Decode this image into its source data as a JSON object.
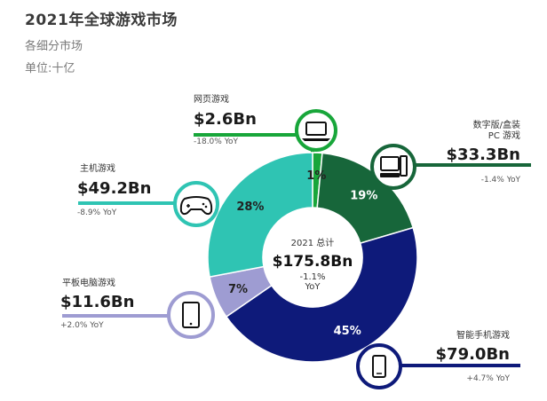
{
  "header": {
    "title": "2021年全球游戏市场",
    "subtitle": "各细分市场",
    "unit": "单位:十亿"
  },
  "chart_data": {
    "type": "pie",
    "title": "2021年全球游戏市场",
    "subtitle": "各细分市场",
    "unit": "单位:十亿",
    "center": {
      "label": "2021 总计",
      "value": "$175.8Bn",
      "yoy": "-1.1%",
      "yoy_unit": "YoY"
    },
    "segments": [
      {
        "name": "网页游戏",
        "value": 2.6,
        "value_label": "$2.6Bn",
        "percent": 1,
        "percent_label": "1%",
        "yoy": "-18.0% YoY",
        "color": "#18a63a",
        "text_color": "#222222",
        "icon": "laptop-icon"
      },
      {
        "name": "数字版/盒装 PC 游戏",
        "name_lines": [
          "数字版/盒装",
          "PC 游戏"
        ],
        "value": 33.3,
        "value_label": "$33.3Bn",
        "percent": 19,
        "percent_label": "19%",
        "yoy": "-1.4% YoY",
        "color": "#17663a",
        "text_color": "#ffffff",
        "icon": "desktop-pc-icon"
      },
      {
        "name": "智能手机游戏",
        "value": 79.0,
        "value_label": "$79.0Bn",
        "percent": 45,
        "percent_label": "45%",
        "yoy": "+4.7% YoY",
        "color": "#0e1a7a",
        "text_color": "#ffffff",
        "icon": "smartphone-icon"
      },
      {
        "name": "平板电脑游戏",
        "value": 11.6,
        "value_label": "$11.6Bn",
        "percent": 7,
        "percent_label": "7%",
        "yoy": "+2.0% YoY",
        "color": "#9e9cd2",
        "text_color": "#222222",
        "icon": "tablet-icon"
      },
      {
        "name": "主机游戏",
        "value": 49.2,
        "value_label": "$49.2Bn",
        "percent": 28,
        "percent_label": "28%",
        "yoy": "-8.9% YoY",
        "color": "#2fc4b3",
        "text_color": "#222222",
        "icon": "gamepad-icon"
      }
    ]
  }
}
